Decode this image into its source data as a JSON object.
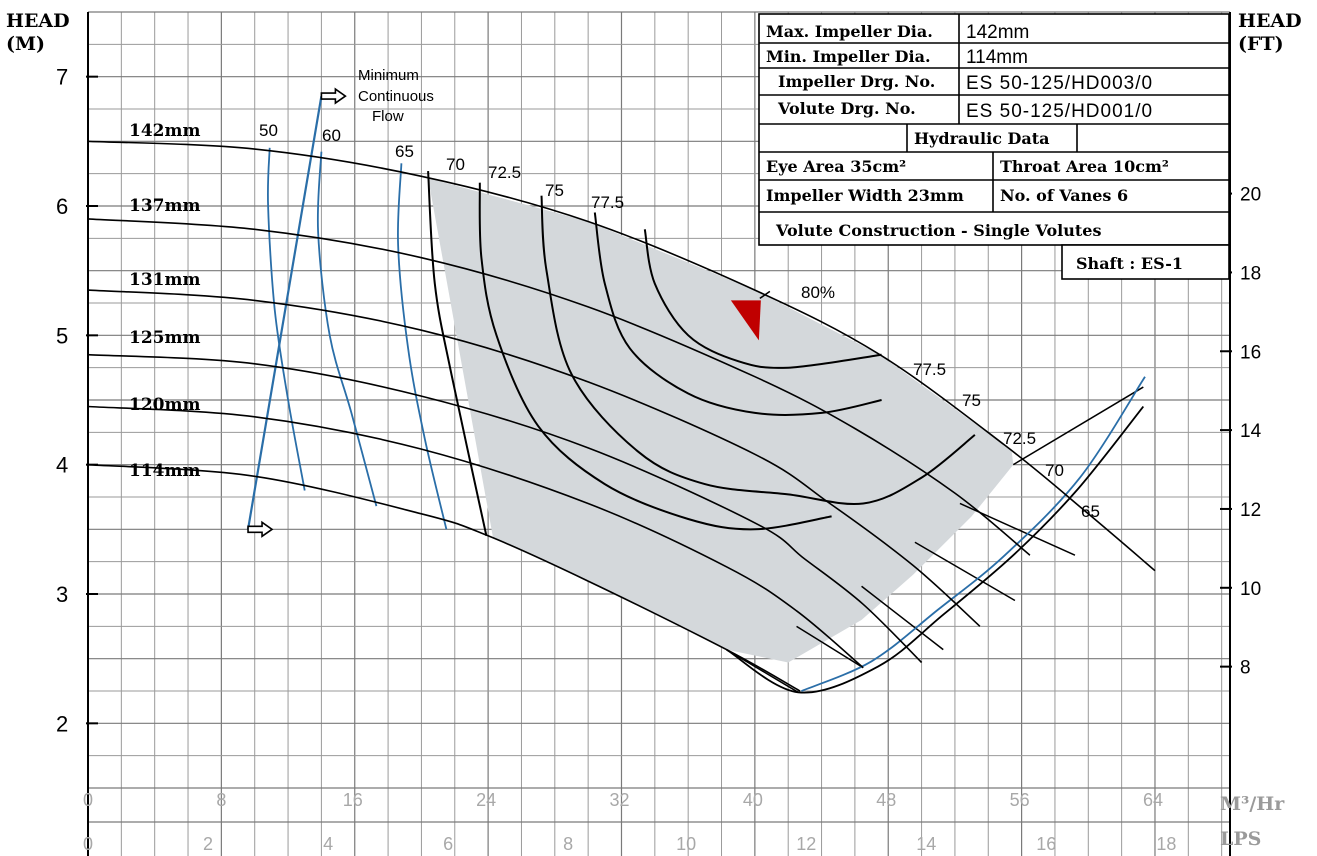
{
  "chart_data": {
    "type": "line",
    "title": "",
    "left_axis": {
      "label_line1": "HEAD",
      "label_line2": "(M)",
      "ticks": [
        "2",
        "3",
        "4",
        "5",
        "6",
        "7"
      ],
      "range": [
        1.5,
        7.5
      ]
    },
    "right_axis": {
      "label_line1": "HEAD",
      "label_line2": "(FT)",
      "ticks": [
        "8",
        "10",
        "12",
        "14",
        "16",
        "18",
        "20"
      ]
    },
    "x_axis_m3hr": {
      "unit": "M³/Hr",
      "ticks": [
        "0",
        "8",
        "16",
        "24",
        "32",
        "40",
        "48",
        "56",
        "64"
      ],
      "range": [
        0,
        68.5
      ]
    },
    "x_axis_lps": {
      "unit": "LPS",
      "ticks": [
        "0",
        "2",
        "4",
        "6",
        "8",
        "10",
        "12",
        "14",
        "16",
        "18"
      ]
    },
    "impeller_curves": [
      {
        "name": "142mm",
        "x": [
          0,
          10,
          20,
          30,
          40,
          47.5,
          55,
          60,
          64
        ],
        "y": [
          6.5,
          6.44,
          6.23,
          5.88,
          5.35,
          4.85,
          4.15,
          3.62,
          3.18
        ]
      },
      {
        "name": "137mm",
        "x": [
          0,
          10,
          20,
          30,
          40,
          46,
          52,
          56.5
        ],
        "y": [
          5.9,
          5.82,
          5.6,
          5.22,
          4.68,
          4.28,
          3.78,
          3.3
        ]
      },
      {
        "name": "131mm",
        "x": [
          0,
          10,
          20,
          30,
          40,
          44.5,
          49.5,
          53.5
        ],
        "y": [
          5.35,
          5.27,
          5.04,
          4.64,
          4.08,
          3.7,
          3.22,
          2.75
        ]
      },
      {
        "name": "125mm",
        "x": [
          0,
          10,
          20,
          30,
          40,
          43,
          46.5,
          50
        ],
        "y": [
          4.85,
          4.78,
          4.53,
          4.13,
          3.55,
          3.27,
          2.92,
          2.47
        ]
      },
      {
        "name": "120mm",
        "x": [
          0,
          10,
          20,
          30,
          38.3,
          42.5,
          46.5
        ],
        "y": [
          4.45,
          4.37,
          4.12,
          3.7,
          3.21,
          2.87,
          2.43
        ]
      },
      {
        "name": "114mm",
        "x": [
          0,
          10,
          20,
          24,
          30,
          38.3,
          42.7
        ],
        "y": [
          4.0,
          3.91,
          3.62,
          3.45,
          3.1,
          2.57,
          2.25
        ]
      }
    ],
    "efficiency_labels_top": [
      "50",
      "60",
      "65",
      "70",
      "72.5",
      "75",
      "77.5"
    ],
    "efficiency_labels_right": [
      "80%",
      "77.5",
      "75",
      "72.5",
      "70",
      "65"
    ],
    "min_flow_label": [
      "Minimum",
      "Continuous",
      "Flow"
    ],
    "colors": {
      "blue": "#2a6ea8",
      "shade": "#d4d8db",
      "marker": "#c00000"
    }
  },
  "info_table": {
    "max_impeller_label": "Max. Impeller Dia.",
    "max_impeller_value": "142mm",
    "min_impeller_label": "Min. Impeller Dia.",
    "min_impeller_value": "114mm",
    "impeller_drg_label": "Impeller Drg. No.",
    "impeller_drg_value": "ES 50-125/HD003/0",
    "volute_drg_label": "Volute Drg. No.",
    "volute_drg_value": "ES 50-125/HD001/0",
    "hydraulic_header": "Hydraulic Data",
    "eye_area": "Eye Area 35cm²",
    "throat_area": "Throat Area 10cm²",
    "impeller_width": "Impeller Width 23mm",
    "vanes": "No. of Vanes 6",
    "volute_construction": "Volute Construction - Single Volutes",
    "shaft": "Shaft : ES-1"
  }
}
